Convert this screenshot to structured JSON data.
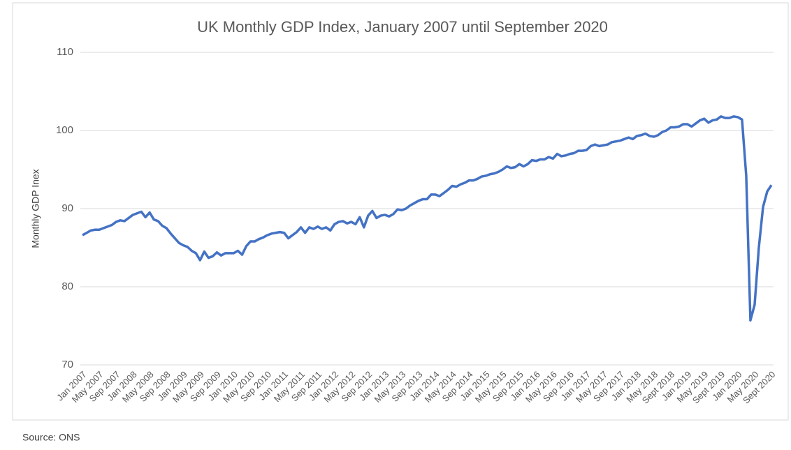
{
  "chart_data": {
    "type": "line",
    "title": "UK Monthly GDP Index, January 2007 until September 2020",
    "y_label": "Monthly GDP Inex",
    "source": "Source: ONS",
    "categories": [
      "Jan 2007",
      null,
      null,
      null,
      "May 2007",
      null,
      null,
      null,
      "Sep 2007",
      null,
      null,
      null,
      "Jan 2008",
      null,
      null,
      null,
      "May 2008",
      null,
      null,
      null,
      "Sep 2008",
      null,
      null,
      null,
      "Jan 2009",
      null,
      null,
      null,
      "May 2009",
      null,
      null,
      null,
      "Sep 2009",
      null,
      null,
      null,
      "Jan 2010",
      null,
      null,
      null,
      "May 2010",
      null,
      null,
      null,
      "Sep 2010",
      null,
      null,
      null,
      "Jan 2011",
      null,
      null,
      null,
      "May 2011",
      null,
      null,
      null,
      "Sep 2011",
      null,
      null,
      null,
      "Jan 2012",
      null,
      null,
      null,
      "May 2012",
      null,
      null,
      null,
      "Sep 2012",
      null,
      null,
      null,
      "Jan 2013",
      null,
      null,
      null,
      "May 2013",
      null,
      null,
      null,
      "Sep 2013",
      null,
      null,
      null,
      "Jan 2014",
      null,
      null,
      null,
      "May 2014",
      null,
      null,
      null,
      "Sep 2014",
      null,
      null,
      null,
      "Jan 2015",
      null,
      null,
      null,
      "May 2015",
      null,
      null,
      null,
      "Sep 2015",
      null,
      null,
      null,
      "Jan 2016",
      null,
      null,
      null,
      "May 2016",
      null,
      null,
      null,
      "Sep 2016",
      null,
      null,
      null,
      "Jan 2017",
      null,
      null,
      null,
      "May 2017",
      null,
      null,
      null,
      "Sep 2017",
      null,
      null,
      null,
      "Jan 2018",
      null,
      null,
      null,
      "May 2018",
      null,
      null,
      null,
      "Sept 2018",
      null,
      null,
      null,
      "Jan 2019",
      null,
      null,
      null,
      "May 2019",
      null,
      null,
      null,
      "Sept 2019",
      null,
      null,
      null,
      "Jan 2020",
      null,
      null,
      null,
      "May 2020",
      null,
      null,
      null,
      "Sept 2020"
    ],
    "series": [
      {
        "color": "#4472c4",
        "values": [
          86.6,
          86.9,
          87.2,
          87.3,
          87.3,
          87.5,
          87.7,
          87.9,
          88.3,
          88.5,
          88.4,
          88.8,
          89.2,
          89.4,
          89.6,
          88.9,
          89.5,
          88.6,
          88.4,
          87.8,
          87.5,
          86.8,
          86.2,
          85.6,
          85.3,
          85.1,
          84.6,
          84.3,
          83.4,
          84.5,
          83.7,
          83.9,
          84.4,
          84.0,
          84.3,
          84.3,
          84.3,
          84.6,
          84.1,
          85.2,
          85.8,
          85.8,
          86.1,
          86.3,
          86.6,
          86.8,
          86.9,
          87.0,
          86.9,
          86.2,
          86.6,
          87.0,
          87.6,
          86.9,
          87.6,
          87.4,
          87.7,
          87.4,
          87.6,
          87.2,
          88.0,
          88.3,
          88.4,
          88.1,
          88.3,
          88.0,
          88.9,
          87.6,
          89.1,
          89.7,
          88.8,
          89.1,
          89.2,
          89.0,
          89.3,
          89.9,
          89.8,
          90.0,
          90.4,
          90.7,
          91.0,
          91.2,
          91.2,
          91.8,
          91.8,
          91.6,
          92.0,
          92.4,
          92.9,
          92.8,
          93.1,
          93.3,
          93.6,
          93.6,
          93.8,
          94.1,
          94.2,
          94.4,
          94.5,
          94.7,
          95.0,
          95.4,
          95.2,
          95.3,
          95.7,
          95.4,
          95.7,
          96.2,
          96.1,
          96.3,
          96.3,
          96.6,
          96.4,
          97.0,
          96.7,
          96.8,
          97.0,
          97.1,
          97.4,
          97.4,
          97.5,
          98.0,
          98.2,
          98.0,
          98.1,
          98.2,
          98.5,
          98.6,
          98.7,
          98.9,
          99.1,
          98.9,
          99.3,
          99.4,
          99.6,
          99.3,
          99.2,
          99.4,
          99.8,
          100.0,
          100.4,
          100.4,
          100.5,
          100.8,
          100.8,
          100.5,
          100.9,
          101.3,
          101.5,
          101.0,
          101.3,
          101.4,
          101.8,
          101.6,
          101.6,
          101.8,
          101.7,
          101.4,
          94.2,
          75.7,
          77.7,
          85.0,
          90.2,
          92.2,
          93.0
        ]
      }
    ],
    "ylim": [
      70,
      110
    ],
    "yticks": [
      70,
      80,
      90,
      100,
      110
    ],
    "grid": true
  }
}
